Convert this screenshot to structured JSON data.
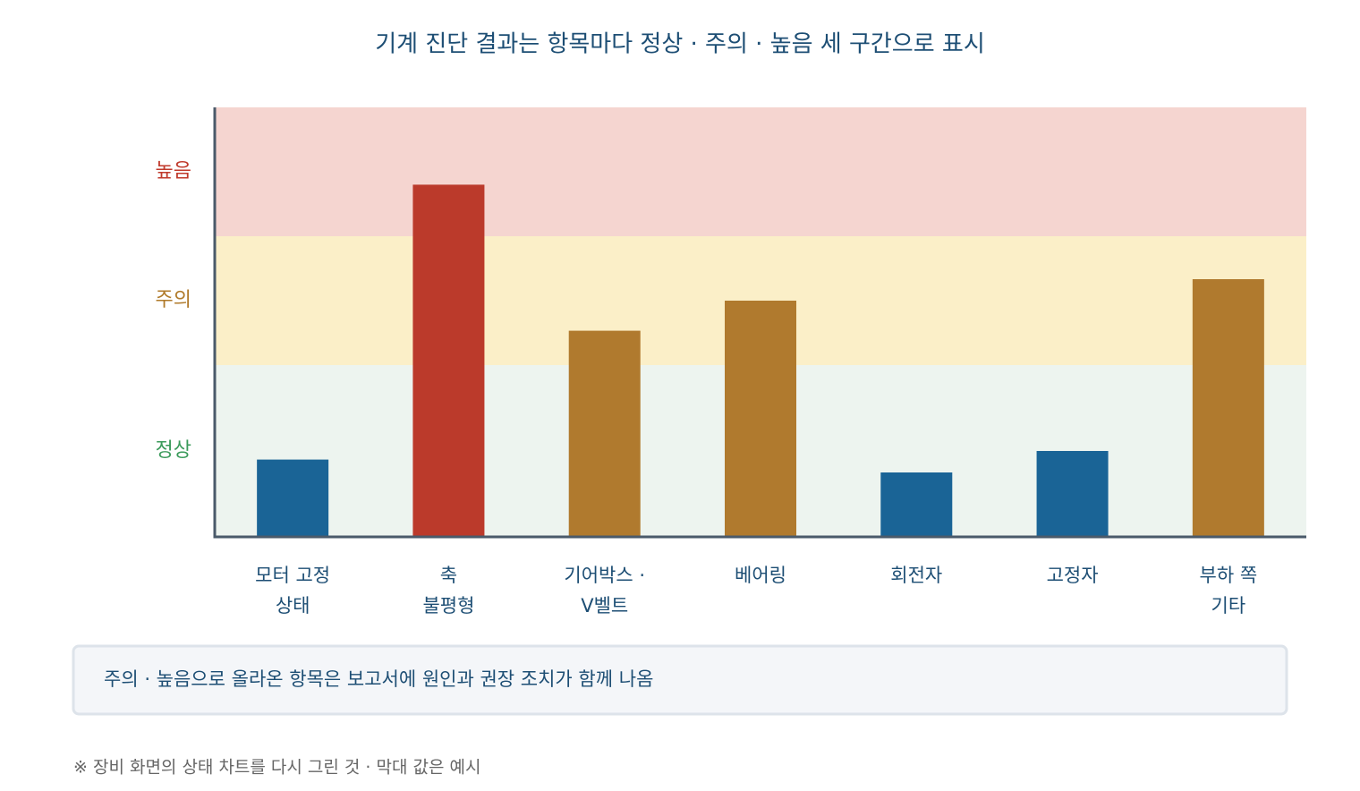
{
  "chart_data": {
    "type": "bar",
    "title": "기계 진단 결과는 항목마다 정상 · 주의 · 높음 세 구간으로 표시",
    "categories": [
      [
        "모터 고정",
        "상태"
      ],
      [
        "축",
        "불평형"
      ],
      [
        "기어박스 ·",
        "V벨트"
      ],
      [
        "베어링"
      ],
      [
        "회전자"
      ],
      [
        "고정자"
      ],
      [
        "부하 쪽",
        "기타"
      ]
    ],
    "values": [
      18,
      82,
      48,
      55,
      15,
      20,
      60
    ],
    "ylim": [
      0,
      100
    ],
    "zones": [
      {
        "label": "정상",
        "from": 0,
        "to": 40,
        "color": "#edf4ef",
        "label_color": "#3a9a5a",
        "bar_color": "#1a6496"
      },
      {
        "label": "주의",
        "from": 40,
        "to": 70,
        "color": "#fbefc8",
        "label_color": "#b07a2a",
        "bar_color": "#b07a2e"
      },
      {
        "label": "높음",
        "from": 70,
        "to": 100,
        "color": "#f5d5d0",
        "label_color": "#c0392b",
        "bar_color": "#bb3a2b"
      }
    ]
  },
  "note": "주의 · 높음으로 올라온 항목은 보고서에 원인과 권장 조치가 함께 나옴",
  "footnote": "※ 장비 화면의 상태 차트를 다시 그린 것 · 막대 값은 예시"
}
